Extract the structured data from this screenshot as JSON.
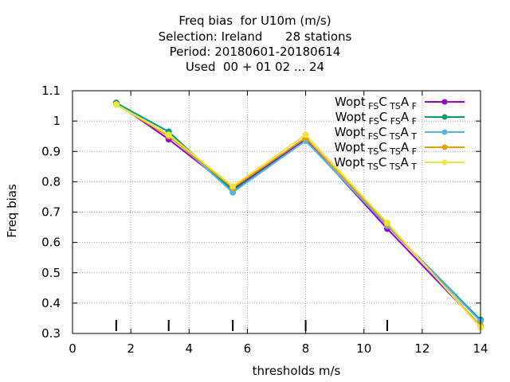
{
  "chart_data": {
    "type": "line",
    "title_lines": [
      "Freq bias  for U10m (m/s)",
      "Selection: Ireland      28 stations",
      "Period: 20180601-20180614",
      "Used  00 + 01 02 ... 24"
    ],
    "xlabel": "thresholds m/s",
    "ylabel": "Freq bias",
    "xlim": [
      0,
      14
    ],
    "ylim": [
      0.3,
      1.1
    ],
    "xticks": [
      "0",
      "2",
      "4",
      "6",
      "8",
      "10",
      "12",
      "14"
    ],
    "yticks": [
      "0.3",
      "0.4",
      "0.5",
      "0.6",
      "0.7",
      "0.8",
      "0.9",
      "1",
      "1.1"
    ],
    "grid": true,
    "legend_position": "top-right",
    "threshold_markers": [
      1.5,
      3.3,
      5.5,
      8,
      10.8
    ],
    "x": [
      1.5,
      3.3,
      5.5,
      8,
      10.8,
      14
    ],
    "series": [
      {
        "name": "Wopt",
        "sub1": "FS",
        "c": "C",
        "sub2": "TS",
        "a": "A",
        "sub3": "F",
        "color": "#9400d3",
        "values": [
          1.06,
          0.94,
          0.775,
          0.94,
          0.645,
          0.325
        ]
      },
      {
        "name": "Wopt",
        "sub1": "FS",
        "c": "C",
        "sub2": "FS",
        "a": "A",
        "sub3": "F",
        "color": "#009e73",
        "values": [
          1.06,
          0.965,
          0.77,
          0.935,
          0.655,
          0.345
        ]
      },
      {
        "name": "Wopt",
        "sub1": "FS",
        "c": "C",
        "sub2": "TS",
        "a": "A",
        "sub3": "T",
        "color": "#56b4e9",
        "values": [
          1.055,
          0.955,
          0.765,
          0.935,
          0.655,
          0.34
        ]
      },
      {
        "name": "Wopt",
        "sub1": "TS",
        "c": "C",
        "sub2": "TS",
        "a": "A",
        "sub3": "F",
        "color": "#e69f00",
        "values": [
          1.055,
          0.95,
          0.78,
          0.945,
          0.66,
          0.325
        ]
      },
      {
        "name": "Wopt",
        "sub1": "TS",
        "c": "C",
        "sub2": "TS",
        "a": "A",
        "sub3": "T",
        "color": "#f0e442",
        "values": [
          1.055,
          0.955,
          0.785,
          0.955,
          0.665,
          0.32
        ]
      }
    ]
  }
}
